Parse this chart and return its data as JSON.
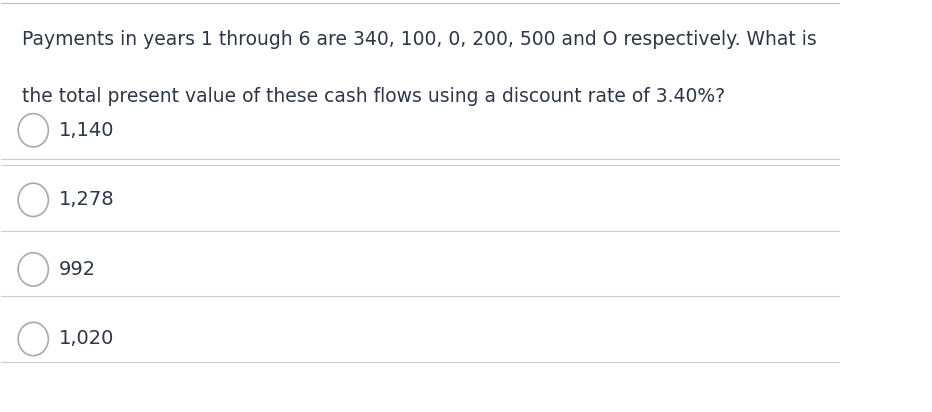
{
  "question_line1": "Payments in years 1 through 6 are 340, 100, 0, 200, 500 and O respectively. What is",
  "question_line2": "the total present value of these cash flows using a discount rate of 3.40%?",
  "options": [
    "1,140",
    "1,278",
    "992",
    "1,020"
  ],
  "background_color": "#ffffff",
  "text_color": "#2d3748",
  "line_color": "#cccccc",
  "circle_color": "#aaaaaa",
  "question_fontsize": 13.5,
  "option_fontsize": 14,
  "top_line_color": "#bbbbbb",
  "fig_width": 9.32,
  "fig_height": 4.12
}
